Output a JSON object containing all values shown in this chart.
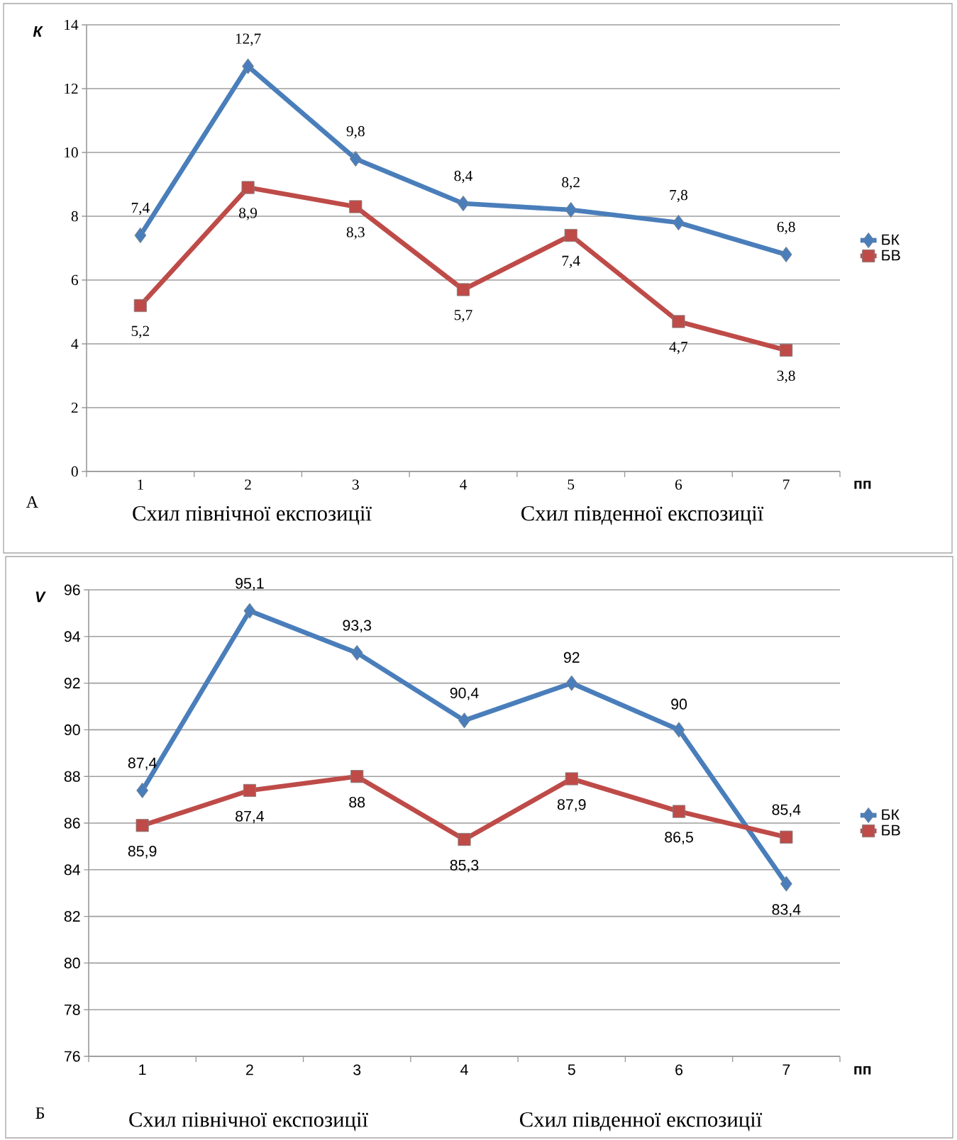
{
  "chart_data": [
    {
      "type": "line",
      "ylabel": "К",
      "xlabel": "пп",
      "categories": [
        "1",
        "2",
        "3",
        "4",
        "5",
        "6",
        "7"
      ],
      "series": [
        {
          "name": "БК",
          "color": "#4a7ebb",
          "marker": "diamond",
          "values": [
            7.4,
            12.7,
            9.8,
            8.4,
            8.2,
            7.8,
            6.8
          ],
          "value_labels": [
            "7,4",
            "12,7",
            "9,8",
            "8,4",
            "8,2",
            "7,8",
            "6,8"
          ]
        },
        {
          "name": "БВ",
          "color": "#be4b48",
          "marker": "square",
          "values": [
            5.2,
            8.9,
            8.3,
            5.7,
            7.4,
            4.7,
            3.8
          ],
          "value_labels": [
            "5,2",
            "8,9",
            "8,3",
            "5,7",
            "7,4",
            "4,7",
            "3,8"
          ]
        }
      ],
      "ylim": [
        0,
        14
      ],
      "yticks": [
        0,
        2,
        4,
        6,
        8,
        10,
        12,
        14
      ],
      "grid": "y",
      "legend": "right",
      "line_style": "solid",
      "annotations": [
        "А",
        "Схил північної експозиції",
        "Схил південної експозиції"
      ]
    },
    {
      "type": "line",
      "ylabel": "V",
      "xlabel": "пп",
      "categories": [
        "1",
        "2",
        "3",
        "4",
        "5",
        "6",
        "7"
      ],
      "series": [
        {
          "name": "БК",
          "color": "#4a7ebb",
          "marker": "diamond",
          "values": [
            87.4,
            95.1,
            93.3,
            90.4,
            92,
            90,
            83.4
          ],
          "value_labels": [
            "87,4",
            "95,1",
            "93,3",
            "90,4",
            "92",
            "90",
            "83,4"
          ]
        },
        {
          "name": "БВ",
          "color": "#be4b48",
          "marker": "square",
          "values": [
            85.9,
            87.4,
            88,
            85.3,
            87.9,
            86.5,
            85.4
          ],
          "value_labels": [
            "85,9",
            "87,4",
            "88",
            "85,3",
            "87,9",
            "86,5",
            "85,4"
          ]
        }
      ],
      "ylim": [
        76,
        96
      ],
      "yticks": [
        76,
        78,
        80,
        82,
        84,
        86,
        88,
        90,
        92,
        94,
        96
      ],
      "grid": "y",
      "legend": "right",
      "line_style": "solid",
      "annotations": [
        "Б",
        "Схил північної експозиції",
        "Схил південної експозиції"
      ]
    }
  ]
}
